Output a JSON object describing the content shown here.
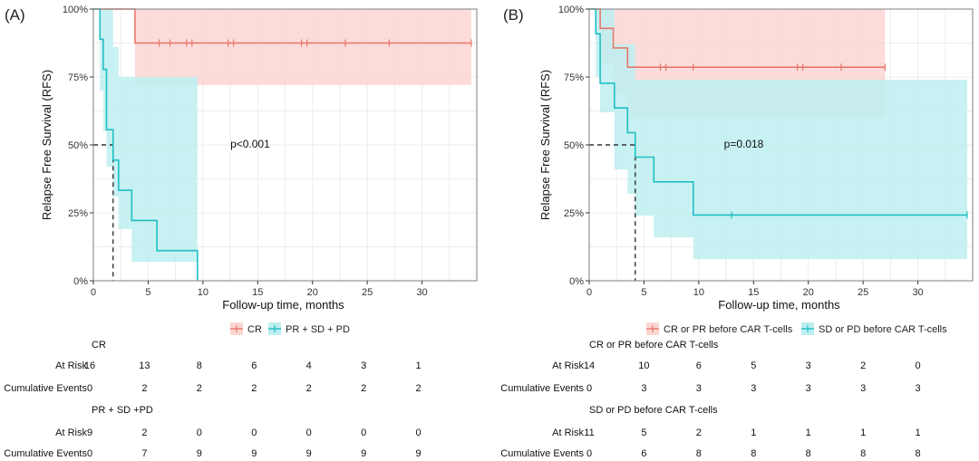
{
  "colors": {
    "red_line": "#e8776b",
    "red_band": "#fbd6d3",
    "cyan_line": "#1fbfc4",
    "cyan_band": "#bdeef0",
    "overlap_band": "#c9d2d2",
    "grid": "#ececec",
    "frame": "#7f7f7f"
  },
  "chart_data": [
    {
      "type": "line",
      "subtype": "kaplan-meier",
      "panel_label": "(A)",
      "ylabel": "Relapse Free Survival (RFS)",
      "xlabel": "Follow-up time, months",
      "xlim": [
        0,
        35
      ],
      "ylim": [
        0,
        1
      ],
      "xticks": [
        0,
        5,
        10,
        15,
        20,
        25,
        30
      ],
      "xtick_labels": [
        "0",
        "5",
        "10",
        "15",
        "20",
        "25",
        "30"
      ],
      "yticks": [
        0,
        0.25,
        0.5,
        0.75,
        1.0
      ],
      "ytick_labels": [
        "0%",
        "25%",
        "50%",
        "75%",
        "100%"
      ],
      "grid": true,
      "pvalue": "p<0.001",
      "median_line": {
        "y": 0.5,
        "x": 1.8
      },
      "legend_position": "bottom",
      "series": [
        {
          "name": "CR",
          "color": "red",
          "x": [
            0,
            3.8,
            34.5
          ],
          "y": [
            1.0,
            0.875,
            0.875
          ],
          "band_x": [
            0,
            3.8,
            34.5
          ],
          "band_lower": [
            1.0,
            0.72,
            0.72
          ],
          "band_upper": [
            1.0,
            1.0,
            1.0
          ],
          "censor_x": [
            6,
            7,
            8.5,
            9,
            12.3,
            12.8,
            19,
            19.5,
            23,
            27,
            34.5
          ]
        },
        {
          "name": "PR + SD + PD",
          "color": "cyan",
          "x": [
            0,
            0.6,
            0.9,
            1.2,
            1.8,
            2.3,
            3.5,
            5.8,
            9.5,
            9.5
          ],
          "y": [
            1.0,
            0.889,
            0.778,
            0.556,
            0.444,
            0.333,
            0.222,
            0.111,
            0.111,
            0.0
          ],
          "band_x": [
            0,
            0.6,
            0.9,
            1.2,
            1.8,
            2.3,
            3.5,
            5.8,
            9.5
          ],
          "band_lower": [
            1.0,
            0.7,
            0.55,
            0.42,
            0.31,
            0.19,
            0.07,
            0.07,
            0.07
          ],
          "band_upper": [
            1.0,
            1.0,
            1.0,
            1.0,
            0.86,
            0.75,
            0.75,
            0.75,
            0.75
          ],
          "censor_x": []
        }
      ],
      "risk_table": {
        "groups": [
          {
            "title": "CR",
            "at_risk_label": "At Risk",
            "at_risk": [
              "16",
              "13",
              "8",
              "6",
              "4",
              "3",
              "1"
            ],
            "events_label": "Cumulative Events",
            "events": [
              "0",
              "2",
              "2",
              "2",
              "2",
              "2",
              "2"
            ]
          },
          {
            "title": "PR + SD +PD",
            "at_risk_label": "At Risk",
            "at_risk": [
              "9",
              "2",
              "0",
              "0",
              "0",
              "0",
              "0"
            ],
            "events_label": "Cumulative Events",
            "events": [
              "0",
              "7",
              "9",
              "9",
              "9",
              "9",
              "9"
            ]
          }
        ]
      }
    },
    {
      "type": "line",
      "subtype": "kaplan-meier",
      "panel_label": "(B)",
      "ylabel": "Relapse Free Survival (RFS)",
      "xlabel": "Follow-up time, months",
      "xlim": [
        0,
        35
      ],
      "ylim": [
        0,
        1
      ],
      "xticks": [
        0,
        5,
        10,
        15,
        20,
        25,
        30
      ],
      "xtick_labels": [
        "0",
        "5",
        "10",
        "15",
        "20",
        "25",
        "30"
      ],
      "yticks": [
        0,
        0.25,
        0.5,
        0.75,
        1.0
      ],
      "ytick_labels": [
        "0%",
        "25%",
        "50%",
        "75%",
        "100%"
      ],
      "grid": true,
      "pvalue": "p=0.018",
      "median_line": {
        "y": 0.5,
        "x": 4.2
      },
      "legend_position": "bottom",
      "series": [
        {
          "name": "CR or PR before CAR T-cells",
          "color": "red",
          "x": [
            0,
            1.0,
            2.2,
            3.5,
            27
          ],
          "y": [
            1.0,
            0.929,
            0.857,
            0.786,
            0.786
          ],
          "band_x": [
            0,
            1.0,
            2.2,
            3.5,
            27
          ],
          "band_lower": [
            1.0,
            0.8,
            0.69,
            0.6,
            0.6
          ],
          "band_upper": [
            1.0,
            1.0,
            1.0,
            1.0,
            1.0
          ],
          "censor_x": [
            6.5,
            7,
            9.5,
            19,
            19.5,
            23,
            27
          ]
        },
        {
          "name": "SD or PD before CAR T-cells",
          "color": "cyan",
          "x": [
            0,
            0.6,
            1.0,
            2.3,
            3.5,
            4.2,
            5.9,
            9.5,
            34.5
          ],
          "y": [
            1.0,
            0.909,
            0.727,
            0.636,
            0.545,
            0.455,
            0.364,
            0.242,
            0.242
          ],
          "band_x": [
            0,
            0.6,
            1.0,
            2.3,
            3.5,
            4.2,
            5.9,
            9.5,
            34.5
          ],
          "band_lower": [
            1.0,
            0.75,
            0.62,
            0.41,
            0.32,
            0.24,
            0.16,
            0.08,
            0.08
          ],
          "band_upper": [
            1.0,
            1.0,
            1.0,
            0.87,
            0.87,
            0.74,
            0.74,
            0.74,
            0.74
          ],
          "censor_x": [
            13,
            34.5
          ]
        }
      ],
      "risk_table": {
        "groups": [
          {
            "title": "CR or PR before CAR T-cells",
            "at_risk_label": "At Risk",
            "at_risk": [
              "14",
              "10",
              "6",
              "5",
              "3",
              "2",
              "0"
            ],
            "events_label": "Cumulative Events",
            "events": [
              "0",
              "3",
              "3",
              "3",
              "3",
              "3",
              "3"
            ]
          },
          {
            "title": "SD or PD before CAR T-cells",
            "at_risk_label": "At Risk",
            "at_risk": [
              "11",
              "5",
              "2",
              "1",
              "1",
              "1",
              "1"
            ],
            "events_label": "Cumulative Events",
            "events": [
              "0",
              "6",
              "8",
              "8",
              "8",
              "8",
              "8"
            ]
          }
        ]
      }
    }
  ]
}
